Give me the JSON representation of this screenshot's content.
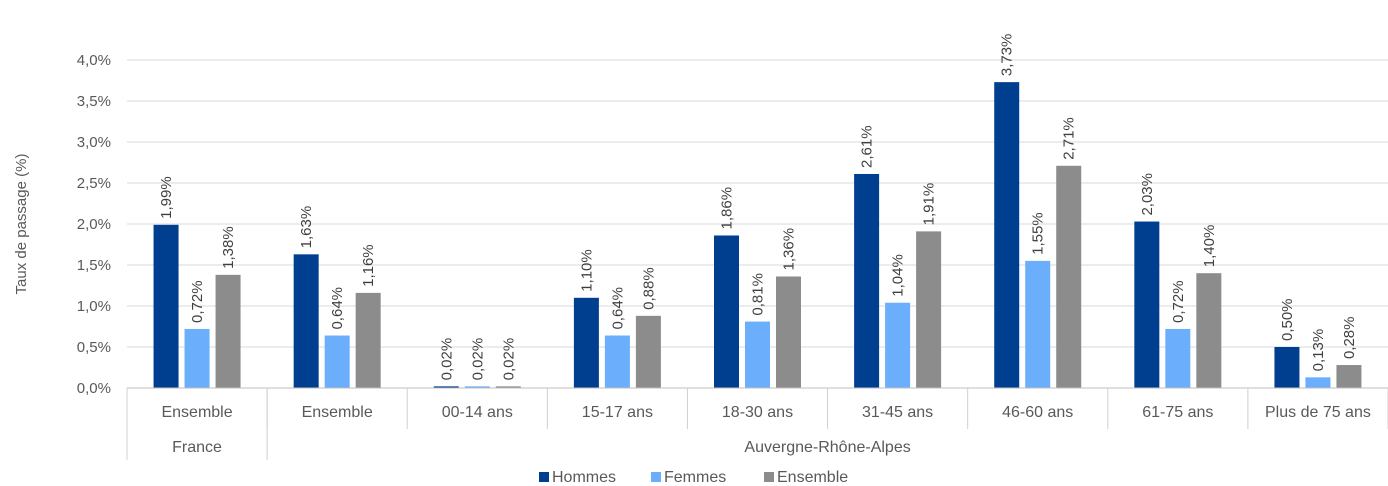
{
  "chart_data": {
    "type": "bar",
    "ylabel": "Taux de passage (%)",
    "ylim": [
      0,
      4
    ],
    "y_ticks": [
      "0,0%",
      "0,5%",
      "1,0%",
      "1,5%",
      "2,0%",
      "2,5%",
      "3,0%",
      "3,5%",
      "4,0%"
    ],
    "grid": true,
    "legend_position": "bottom",
    "categories": [
      "Ensemble",
      "Ensemble",
      "00-14 ans",
      "15-17 ans",
      "18-30 ans",
      "31-45 ans",
      "46-60 ans",
      "61-75 ans",
      "Plus de 75 ans"
    ],
    "groups": [
      {
        "label": "France",
        "span": 1
      },
      {
        "label": "Auvergne-Rhône-Alpes",
        "span": 8
      }
    ],
    "series": [
      {
        "name": "Hommes",
        "color": "#003f8f",
        "values": [
          1.99,
          1.63,
          0.02,
          1.1,
          1.86,
          2.61,
          3.73,
          2.03,
          0.5
        ],
        "labels": [
          "1,99%",
          "1,63%",
          "0,02%",
          "1,10%",
          "1,86%",
          "2,61%",
          "3,73%",
          "2,03%",
          "0,50%"
        ]
      },
      {
        "name": "Femmes",
        "color": "#6aaefc",
        "values": [
          0.72,
          0.64,
          0.02,
          0.64,
          0.81,
          1.04,
          1.55,
          0.72,
          0.13
        ],
        "labels": [
          "0,72%",
          "0,64%",
          "0,02%",
          "0,64%",
          "0,81%",
          "1,04%",
          "1,55%",
          "0,72%",
          "0,13%"
        ]
      },
      {
        "name": "Ensemble",
        "color": "#8c8c8c",
        "values": [
          1.38,
          1.16,
          0.02,
          0.88,
          1.36,
          1.91,
          2.71,
          1.4,
          0.28
        ],
        "labels": [
          "1,38%",
          "1,16%",
          "0,02%",
          "0,88%",
          "1,36%",
          "1,91%",
          "2,71%",
          "1,40%",
          "0,28%"
        ]
      }
    ]
  }
}
